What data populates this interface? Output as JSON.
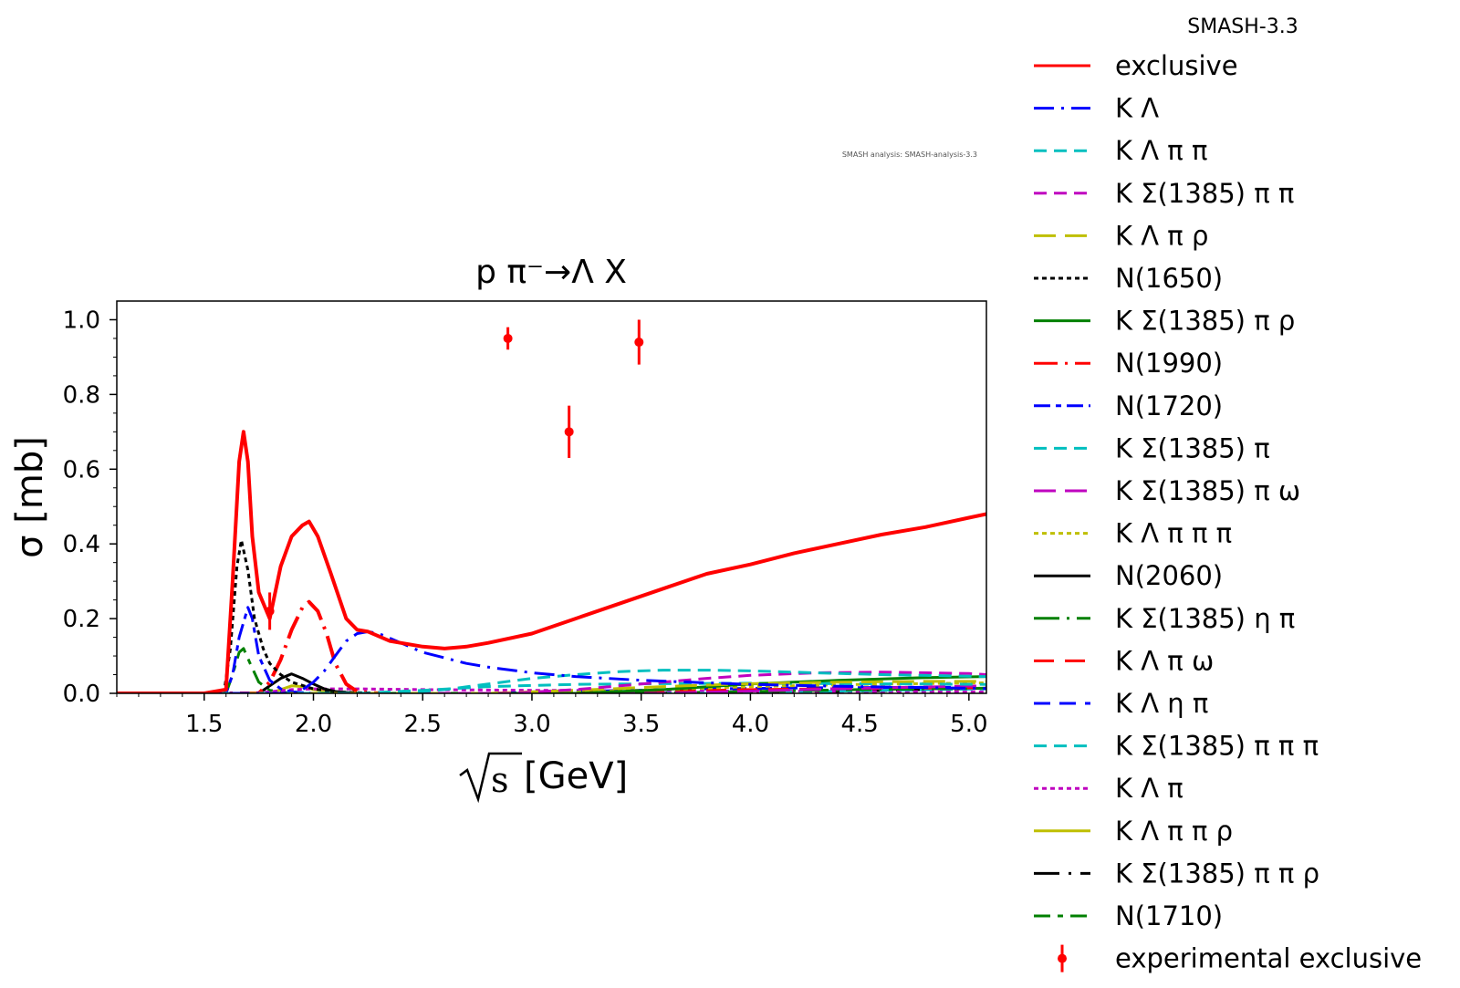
{
  "chart_data": {
    "type": "line",
    "title": "p π⁻→Λ X",
    "xlabel": "[GeV]",
    "xlabel_radicand": "s",
    "ylabel": "σ [mb]",
    "xlim": [
      1.1,
      5.08
    ],
    "ylim": [
      0.0,
      1.05
    ],
    "xticks": [
      "1.5",
      "2.0",
      "2.5",
      "3.0",
      "3.5",
      "4.0",
      "4.5",
      "5.0"
    ],
    "xtick_values": [
      1.5,
      2.0,
      2.5,
      3.0,
      3.5,
      4.0,
      4.5,
      5.0
    ],
    "yticks": [
      "0.0",
      "0.2",
      "0.4",
      "0.6",
      "0.8",
      "1.0"
    ],
    "ytick_values": [
      0.0,
      0.2,
      0.4,
      0.6,
      0.8,
      1.0
    ],
    "legend_title": "SMASH-3.3",
    "version_tag": "SMASH analysis: SMASH-analysis-3.3",
    "series": [
      {
        "name": "exclusive",
        "color": "#ff0000",
        "dash": "solid",
        "width": 4,
        "x": [
          1.1,
          1.5,
          1.6,
          1.63,
          1.66,
          1.68,
          1.7,
          1.72,
          1.75,
          1.8,
          1.85,
          1.9,
          1.95,
          1.98,
          2.02,
          2.08,
          2.15,
          2.2,
          2.25,
          2.35,
          2.5,
          2.6,
          2.7,
          2.8,
          3.0,
          3.2,
          3.4,
          3.6,
          3.8,
          4.0,
          4.2,
          4.4,
          4.6,
          4.8,
          5.0,
          5.08
        ],
        "y": [
          0.0,
          0.0,
          0.01,
          0.3,
          0.62,
          0.7,
          0.62,
          0.42,
          0.27,
          0.2,
          0.34,
          0.42,
          0.45,
          0.46,
          0.42,
          0.32,
          0.2,
          0.17,
          0.165,
          0.14,
          0.125,
          0.12,
          0.125,
          0.135,
          0.16,
          0.2,
          0.24,
          0.28,
          0.32,
          0.345,
          0.375,
          0.4,
          0.425,
          0.445,
          0.47,
          0.48
        ]
      },
      {
        "name": "K Λ",
        "color": "#0000ff",
        "dash": "22,8,3,8",
        "width": 3,
        "x": [
          1.1,
          1.9,
          1.95,
          2.0,
          2.05,
          2.1,
          2.15,
          2.2,
          2.25,
          2.3,
          2.4,
          2.5,
          2.6,
          2.7,
          2.8,
          3.0,
          3.2,
          3.5,
          3.8,
          4.0,
          4.3,
          4.6,
          5.08
        ],
        "y": [
          0.0,
          0.0,
          0.01,
          0.03,
          0.06,
          0.1,
          0.14,
          0.16,
          0.165,
          0.16,
          0.135,
          0.11,
          0.095,
          0.08,
          0.07,
          0.055,
          0.045,
          0.035,
          0.028,
          0.024,
          0.02,
          0.017,
          0.013
        ]
      },
      {
        "name": "K Λ π π",
        "color": "#00bfbf",
        "dash": "14,8",
        "width": 3,
        "x": [
          1.1,
          2.4,
          2.6,
          2.8,
          3.0,
          3.2,
          3.4,
          3.6,
          3.8,
          4.0,
          4.3,
          4.6,
          5.08
        ],
        "y": [
          0.0,
          0.0,
          0.01,
          0.025,
          0.04,
          0.05,
          0.058,
          0.062,
          0.062,
          0.06,
          0.055,
          0.05,
          0.045
        ]
      },
      {
        "name": "K Σ(1385) π π",
        "color": "#bf00bf",
        "dash": "14,8",
        "width": 3,
        "x": [
          1.1,
          2.9,
          3.2,
          3.5,
          3.8,
          4.0,
          4.3,
          4.6,
          5.0,
          5.08
        ],
        "y": [
          0.0,
          0.0,
          0.01,
          0.025,
          0.04,
          0.048,
          0.055,
          0.057,
          0.053,
          0.05
        ]
      },
      {
        "name": "K Λ π ρ",
        "color": "#bfbf00",
        "dash": "24,10",
        "width": 3,
        "x": [
          1.1,
          2.8,
          3.2,
          3.6,
          4.0,
          4.4,
          4.8,
          5.08
        ],
        "y": [
          0.0,
          0.0,
          0.008,
          0.018,
          0.026,
          0.03,
          0.032,
          0.032
        ]
      },
      {
        "name": "N(1650)",
        "color": "#000000",
        "dash": "5,4",
        "width": 3,
        "x": [
          1.1,
          1.59,
          1.62,
          1.65,
          1.67,
          1.7,
          1.73,
          1.77,
          1.8,
          1.85,
          1.9,
          2.0,
          2.1,
          2.3
        ],
        "y": [
          0.0,
          0.0,
          0.12,
          0.34,
          0.41,
          0.33,
          0.2,
          0.12,
          0.08,
          0.05,
          0.03,
          0.012,
          0.004,
          0.0
        ]
      },
      {
        "name": "K Σ(1385) π ρ",
        "color": "#008000",
        "dash": "solid",
        "width": 3,
        "x": [
          1.1,
          3.2,
          3.6,
          4.0,
          4.4,
          4.8,
          5.08
        ],
        "y": [
          0.0,
          0.0,
          0.01,
          0.025,
          0.035,
          0.042,
          0.045
        ]
      },
      {
        "name": "N(1990)",
        "color": "#ff0000",
        "dash": "26,8,3,8",
        "width": 4,
        "x": [
          1.1,
          1.75,
          1.8,
          1.85,
          1.9,
          1.95,
          1.98,
          2.02,
          2.06,
          2.1,
          2.15,
          2.2,
          2.3
        ],
        "y": [
          0.0,
          0.0,
          0.03,
          0.09,
          0.17,
          0.23,
          0.245,
          0.22,
          0.16,
          0.08,
          0.025,
          0.005,
          0.0
        ]
      },
      {
        "name": "N(1720)",
        "color": "#0000ff",
        "dash": "18,6,6,6",
        "width": 3,
        "x": [
          1.1,
          1.6,
          1.63,
          1.66,
          1.7,
          1.72,
          1.75,
          1.8,
          1.85,
          1.9,
          2.0
        ],
        "y": [
          0.0,
          0.0,
          0.05,
          0.15,
          0.23,
          0.2,
          0.1,
          0.035,
          0.012,
          0.004,
          0.0
        ]
      },
      {
        "name": "K Σ(1385) π",
        "color": "#00bfbf",
        "dash": "14,8",
        "width": 3,
        "x": [
          1.1,
          2.2,
          2.5,
          2.8,
          3.2,
          3.6,
          4.0,
          4.4,
          4.8,
          5.08
        ],
        "y": [
          0.0,
          0.0,
          0.008,
          0.018,
          0.024,
          0.026,
          0.027,
          0.026,
          0.025,
          0.024
        ]
      },
      {
        "name": "K Σ(1385) π ω",
        "color": "#bf00bf",
        "dash": "24,10",
        "width": 3,
        "x": [
          1.1,
          3.6,
          4.0,
          4.4,
          4.8,
          5.08
        ],
        "y": [
          0.0,
          0.0,
          0.006,
          0.012,
          0.017,
          0.02
        ]
      },
      {
        "name": "K Λ π π π",
        "color": "#bfbf00",
        "dash": "5,4",
        "width": 3,
        "x": [
          1.1,
          3.0,
          3.5,
          4.0,
          4.5,
          5.08
        ],
        "y": [
          0.0,
          0.0,
          0.008,
          0.018,
          0.024,
          0.028
        ]
      },
      {
        "name": "N(2060)",
        "color": "#000000",
        "dash": "solid",
        "width": 3,
        "x": [
          1.1,
          1.75,
          1.8,
          1.85,
          1.9,
          1.95,
          2.0,
          2.05,
          2.1,
          2.2
        ],
        "y": [
          0.0,
          0.0,
          0.02,
          0.04,
          0.052,
          0.04,
          0.025,
          0.012,
          0.005,
          0.0
        ]
      },
      {
        "name": "K Σ(1385) η π",
        "color": "#008000",
        "dash": "28,8,3,8",
        "width": 3,
        "x": [
          1.1,
          3.5,
          4.0,
          4.5,
          5.08
        ],
        "y": [
          0.0,
          0.0,
          0.005,
          0.01,
          0.014
        ]
      },
      {
        "name": "K Λ π ω",
        "color": "#ff0000",
        "dash": "22,12",
        "width": 3,
        "x": [
          1.1,
          3.0,
          3.5,
          4.0,
          4.5,
          5.08
        ],
        "y": [
          0.0,
          0.0,
          0.005,
          0.01,
          0.013,
          0.015
        ]
      },
      {
        "name": "K Λ η π",
        "color": "#0000ff",
        "dash": "18,10",
        "width": 3,
        "x": [
          1.1,
          2.8,
          3.3,
          3.8,
          4.3,
          4.8,
          5.08
        ],
        "y": [
          0.0,
          0.0,
          0.006,
          0.012,
          0.015,
          0.016,
          0.016
        ]
      },
      {
        "name": "K Σ(1385) π π π",
        "color": "#00bfbf",
        "dash": "14,8",
        "width": 3,
        "x": [
          1.1,
          3.8,
          4.2,
          4.6,
          5.08
        ],
        "y": [
          0.0,
          0.0,
          0.004,
          0.008,
          0.012
        ]
      },
      {
        "name": "K Λ π",
        "color": "#bf00bf",
        "dash": "5,4",
        "width": 3,
        "x": [
          1.1,
          1.7,
          1.8,
          1.9,
          2.0,
          2.2,
          2.5,
          3.0,
          3.5,
          4.0,
          4.5,
          5.08
        ],
        "y": [
          0.0,
          0.0,
          0.004,
          0.01,
          0.012,
          0.012,
          0.01,
          0.008,
          0.007,
          0.006,
          0.005,
          0.004
        ]
      },
      {
        "name": "K Λ π π ρ",
        "color": "#bfbf00",
        "dash": "solid",
        "width": 3,
        "x": [
          1.1,
          1.8,
          1.85,
          1.9,
          1.95,
          2.0,
          2.1,
          2.2
        ],
        "y": [
          0.0,
          0.0,
          0.01,
          0.02,
          0.018,
          0.01,
          0.003,
          0.0
        ]
      },
      {
        "name": "K Σ(1385) π π ρ",
        "color": "#000000",
        "dash": "28,10,3,10",
        "width": 3,
        "x": [
          1.1,
          4.0,
          4.4,
          4.8,
          5.08
        ],
        "y": [
          0.0,
          0.0,
          0.005,
          0.01,
          0.014
        ]
      },
      {
        "name": "N(1710)",
        "color": "#008000",
        "dash": "18,8,6,8",
        "width": 3,
        "x": [
          1.1,
          1.6,
          1.63,
          1.66,
          1.68,
          1.71,
          1.75,
          1.8,
          1.9
        ],
        "y": [
          0.0,
          0.0,
          0.05,
          0.11,
          0.12,
          0.08,
          0.03,
          0.008,
          0.0
        ]
      }
    ],
    "experimental": {
      "name": "experimental exclusive",
      "color": "#ff0000",
      "points": [
        {
          "x": 1.8,
          "y": 0.22,
          "err": 0.05
        },
        {
          "x": 2.89,
          "y": 0.95,
          "err": 0.03
        },
        {
          "x": 3.17,
          "y": 0.7,
          "err": 0.07
        },
        {
          "x": 3.49,
          "y": 0.94,
          "err": 0.06
        }
      ]
    }
  }
}
